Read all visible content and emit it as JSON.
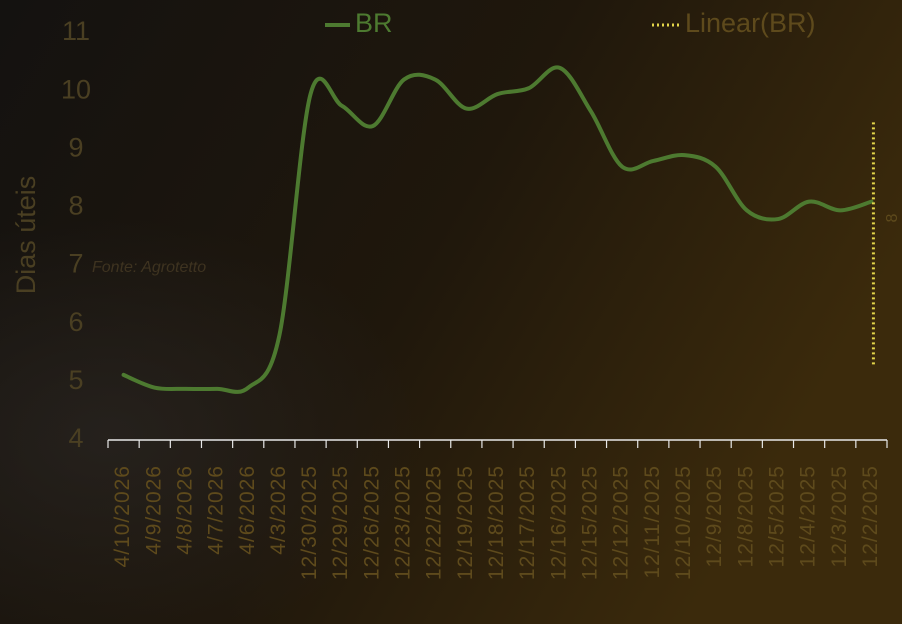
{
  "chart_data": {
    "type": "line",
    "y_label": "Dias úteis",
    "source": "Fonte: Agrotetto",
    "edge_label": "8",
    "categories": [
      "4/10/2026",
      "4/9/2026",
      "4/8/2026",
      "4/7/2026",
      "4/6/2026",
      "4/3/2026",
      "12/30/2025",
      "12/29/2025",
      "12/26/2025",
      "12/23/2025",
      "12/22/2025",
      "12/19/2025",
      "12/18/2025",
      "12/17/2025",
      "12/16/2025",
      "12/15/2025",
      "12/12/2025",
      "12/11/2025",
      "12/10/2025",
      "12/9/2025",
      "12/8/2025",
      "12/5/2025",
      "12/4/2025",
      "12/3/2025",
      "12/2/2025"
    ],
    "series": [
      {
        "name": "BR",
        "color": "#4d7a30",
        "values": [
          5.12,
          4.9,
          4.88,
          4.88,
          4.9,
          5.8,
          9.95,
          9.75,
          9.4,
          10.2,
          10.2,
          9.7,
          9.95,
          10.05,
          10.4,
          9.65,
          8.7,
          8.8,
          8.9,
          8.7,
          7.95,
          7.8,
          8.1,
          7.95,
          8.1
        ]
      }
    ],
    "trendline": {
      "name": "Linear(BR)",
      "color": "#e3d54a",
      "from": 5.3,
      "to": 9.5
    },
    "ylim": [
      4,
      11
    ],
    "yticks": [
      4,
      5,
      6,
      7,
      8,
      9,
      10,
      11
    ]
  }
}
